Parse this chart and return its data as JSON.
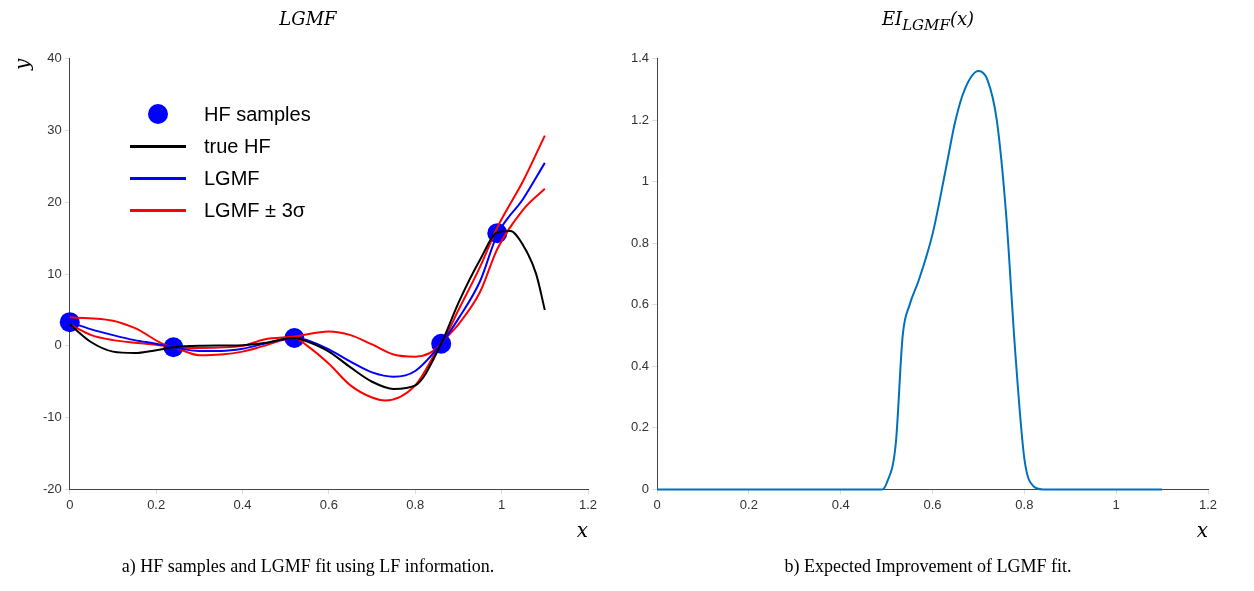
{
  "chart_data": [
    {
      "type": "line",
      "title": "LGMF",
      "xlabel": "x",
      "ylabel": "y",
      "xlim": [
        0,
        1.2
      ],
      "xticks": [
        0,
        0.2,
        0.4,
        0.6,
        0.8,
        1,
        1.2
      ],
      "ylim": [
        -20,
        40
      ],
      "yticks": [
        -20,
        -10,
        0,
        10,
        20,
        30,
        40
      ],
      "legend": "top left",
      "annotations": [
        "a) HF samples and LGMF fit using LF information."
      ],
      "series": [
        {
          "name": "HF samples",
          "type": "scatter",
          "marker": "circle",
          "color": "#0000ff",
          "x": [
            0,
            0.24,
            0.52,
            0.86,
            0.99
          ],
          "values": [
            3.3,
            -0.2,
            1.1,
            0.3,
            15.7
          ]
        },
        {
          "name": "true HF",
          "type": "line",
          "color": "#000000",
          "x": [
            0,
            0.05,
            0.1,
            0.15,
            0.2,
            0.24,
            0.3,
            0.4,
            0.45,
            0.52,
            0.55,
            0.6,
            0.65,
            0.7,
            0.75,
            0.8,
            0.86,
            0.9,
            0.95,
            0.99,
            1.02,
            1.05,
            1.08,
            1.1
          ],
          "values": [
            3.0,
            0.5,
            -0.8,
            -1.0,
            -0.6,
            -0.2,
            0,
            0.1,
            0.4,
            1.1,
            0.6,
            -0.8,
            -3.0,
            -5,
            -6,
            -5.5,
            0.3,
            6,
            12,
            15.8,
            16,
            14,
            10,
            5
          ]
        },
        {
          "name": "LGMF",
          "type": "line",
          "color": "#0000ff",
          "x": [
            0,
            0.05,
            0.1,
            0.15,
            0.2,
            0.24,
            0.3,
            0.35,
            0.4,
            0.45,
            0.52,
            0.55,
            0.6,
            0.65,
            0.7,
            0.75,
            0.8,
            0.86,
            0.9,
            0.95,
            0.99,
            1.05,
            1.1
          ],
          "values": [
            3.3,
            2.3,
            1.5,
            0.8,
            0.3,
            -0.2,
            -0.7,
            -0.7,
            -0.4,
            0.3,
            1.1,
            0.8,
            -0.5,
            -2.2,
            -3.7,
            -4.3,
            -3.5,
            0.3,
            3.8,
            9,
            15.5,
            20.5,
            25.5
          ]
        },
        {
          "name": "LGMF ± 3σ",
          "type": "line",
          "color": "#ff0000",
          "x": [
            0,
            0.1,
            0.15,
            0.24,
            0.3,
            0.4,
            0.45,
            0.52,
            0.6,
            0.65,
            0.7,
            0.75,
            0.8,
            0.86,
            0.9,
            0.95,
            0.99,
            1.05,
            1.1
          ],
          "values": [
            4,
            3.5,
            2.5,
            -0.2,
            -0.3,
            0,
            0.9,
            1.3,
            2,
            1.5,
            0.2,
            -1.2,
            -1.5,
            0.3,
            5,
            11,
            16.5,
            23,
            29.3
          ]
        },
        {
          "type": "line",
          "color": "#ff0000",
          "x": [
            0,
            0.05,
            0.1,
            0.24,
            0.3,
            0.35,
            0.4,
            0.45,
            0.52,
            0.55,
            0.6,
            0.65,
            0.7,
            0.73,
            0.8,
            0.86,
            0.9,
            0.95,
            0.99,
            1.05,
            1.1
          ],
          "values": [
            3,
            1.5,
            0.8,
            -0.2,
            -1.3,
            -1.2,
            -0.8,
            0,
            1.1,
            0,
            -2.5,
            -5.5,
            -7.2,
            -7.6,
            -5.5,
            0.3,
            3,
            7.5,
            13.5,
            19,
            21.9
          ]
        }
      ]
    },
    {
      "type": "line",
      "title": "EI$_{LGMF}$(x)",
      "xlabel": "x",
      "xlim": [
        0,
        1.2
      ],
      "xticks": [
        0,
        0.2,
        0.4,
        0.6,
        0.8,
        1,
        1.2
      ],
      "ylim": [
        0,
        1.4
      ],
      "yticks": [
        0,
        0.2,
        0.4,
        0.6,
        0.8,
        1,
        1.2,
        1.4
      ],
      "annotations": [
        "b) Expected Improvement of LGMF fit."
      ],
      "series": [
        {
          "color": "#0072bd",
          "x": [
            0,
            0.2,
            0.4,
            0.49,
            0.5,
            0.52,
            0.535,
            0.55,
            0.57,
            0.6,
            0.63,
            0.65,
            0.67,
            0.7,
            0.72,
            0.74,
            0.76,
            0.78,
            0.8,
            0.82,
            0.84,
            1,
            1.1
          ],
          "values": [
            0,
            0,
            0,
            0,
            0.02,
            0.15,
            0.5,
            0.6,
            0.68,
            0.83,
            1.05,
            1.2,
            1.3,
            1.36,
            1.33,
            1.2,
            0.9,
            0.45,
            0.1,
            0.01,
            0,
            0,
            0
          ]
        }
      ]
    }
  ]
}
